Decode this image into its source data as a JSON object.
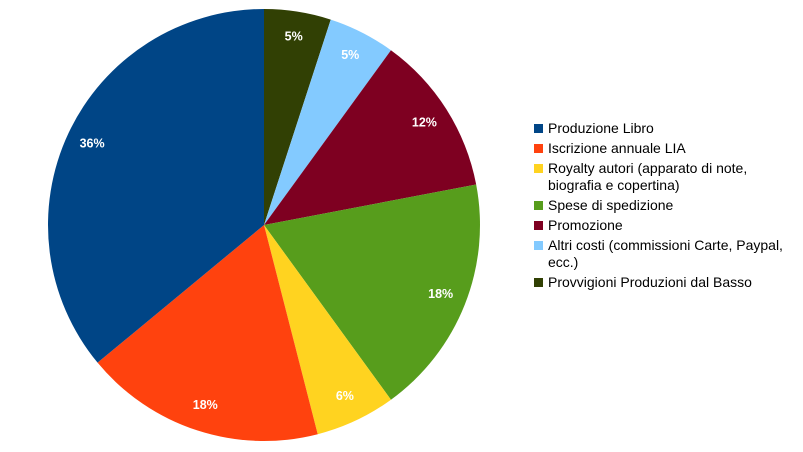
{
  "chart_data": {
    "type": "pie",
    "title": "",
    "start_angle_deg": 0,
    "direction": "clockwise",
    "legend_position": "right",
    "slices": [
      {
        "label": "Provvigioni Produzioni dal Basso",
        "value": 5,
        "display": "5%",
        "color": "#314004"
      },
      {
        "label": "Altri costi (commissioni Carte, Paypal, ecc.)",
        "value": 5,
        "display": "5%",
        "color": "#83CAFF"
      },
      {
        "label": "Promozione",
        "value": 12,
        "display": "12%",
        "color": "#7E0021"
      },
      {
        "label": "Spese di spedizione",
        "value": 18,
        "display": "18%",
        "color": "#579D1C"
      },
      {
        "label": "Royalty autori (apparato di note, biografia e copertina)",
        "value": 6,
        "display": "6%",
        "color": "#FFD320"
      },
      {
        "label": "Iscrizione annuale LIA",
        "value": 18,
        "display": "18%",
        "color": "#FF420E"
      },
      {
        "label": "Produzione Libro",
        "value": 36,
        "display": "36%",
        "color": "#004586"
      }
    ],
    "legend": [
      {
        "label": "Produzione Libro",
        "color": "#004586"
      },
      {
        "label": "Iscrizione annuale LIA",
        "color": "#FF420E"
      },
      {
        "label": "Royalty autori (apparato di note, biografia e copertina)",
        "color": "#FFD320"
      },
      {
        "label": "Spese di spedizione",
        "color": "#579D1C"
      },
      {
        "label": "Promozione",
        "color": "#7E0021"
      },
      {
        "label": "Altri costi (commissioni Carte, Paypal, ecc.)",
        "color": "#83CAFF"
      },
      {
        "label": "Provvigioni Produzioni dal Basso",
        "color": "#314004"
      }
    ]
  }
}
